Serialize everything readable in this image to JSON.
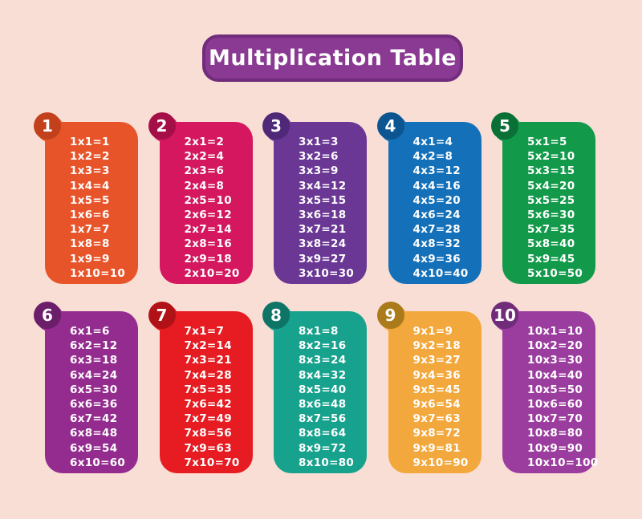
{
  "background_color": "#f9ded5",
  "title": {
    "text": "Multiplication Table",
    "fill": "#8a3a92",
    "border": "#712c7c",
    "text_color": "#ffffff"
  },
  "cards": [
    {
      "number": "1",
      "color": "#e8542a",
      "badge_color": "#c2411c",
      "facts": [
        "1x1=1",
        "1x2=2",
        "1x3=3",
        "1x4=4",
        "1x5=5",
        "1x6=6",
        "1x7=7",
        "1x8=8",
        "1x9=9",
        "1x10=10"
      ]
    },
    {
      "number": "2",
      "color": "#d4175e",
      "badge_color": "#a50f47",
      "facts": [
        "2x1=2",
        "2x2=4",
        "2x3=6",
        "2x4=8",
        "2x5=10",
        "2x6=12",
        "2x7=14",
        "2x8=16",
        "2x9=18",
        "2x10=20"
      ]
    },
    {
      "number": "3",
      "color": "#6b3794",
      "badge_color": "#4f2877",
      "facts": [
        "3x1=3",
        "3x2=6",
        "3x3=9",
        "3x4=12",
        "3x5=15",
        "3x6=18",
        "3x7=21",
        "3x8=24",
        "3x9=27",
        "3x10=30"
      ]
    },
    {
      "number": "4",
      "color": "#1470b8",
      "badge_color": "#0c5590",
      "facts": [
        "4x1=4",
        "4x2=8",
        "4x3=12",
        "4x4=16",
        "4x5=20",
        "4x6=24",
        "4x7=28",
        "4x8=32",
        "4x9=36",
        "4x10=40"
      ]
    },
    {
      "number": "5",
      "color": "#12994a",
      "badge_color": "#0b7036",
      "facts": [
        "5x1=5",
        "5x2=10",
        "5x3=15",
        "5x4=20",
        "5x5=25",
        "5x6=30",
        "5x7=35",
        "5x8=40",
        "5x9=45",
        "5x10=50"
      ]
    },
    {
      "number": "6",
      "color": "#942c90",
      "badge_color": "#6b1e69",
      "facts": [
        "6x1=6",
        "6x2=12",
        "6x3=18",
        "6x4=24",
        "6x5=30",
        "6x6=36",
        "6x7=42",
        "6x8=48",
        "6x9=54",
        "6x10=60"
      ]
    },
    {
      "number": "7",
      "color": "#e61c22",
      "badge_color": "#b01217",
      "facts": [
        "7x1=7",
        "7x2=14",
        "7x3=21",
        "7x4=28",
        "7x5=35",
        "7x6=42",
        "7x7=49",
        "7x8=56",
        "7x9=63",
        "7x10=70"
      ]
    },
    {
      "number": "8",
      "color": "#17a28e",
      "badge_color": "#0e7466",
      "facts": [
        "8x1=8",
        "8x2=16",
        "8x3=24",
        "8x4=32",
        "8x5=40",
        "8x6=48",
        "8x7=56",
        "8x8=64",
        "8x9=72",
        "8x10=80"
      ]
    },
    {
      "number": "9",
      "color": "#f2a83c",
      "badge_color": "#ab7a1b",
      "facts": [
        "9x1=9",
        "9x2=18",
        "9x3=27",
        "9x4=36",
        "9x5=45",
        "9x6=54",
        "9x7=63",
        "9x8=72",
        "9x9=81",
        "9x10=90"
      ]
    },
    {
      "number": "10",
      "color": "#9a3d9e",
      "badge_color": "#702c79",
      "facts": [
        "10x1=10",
        "10x2=20",
        "10x3=30",
        "10x4=40",
        "10x5=50",
        "10x6=60",
        "10x7=70",
        "10x8=80",
        "10x9=90",
        "10x10=100"
      ]
    }
  ]
}
